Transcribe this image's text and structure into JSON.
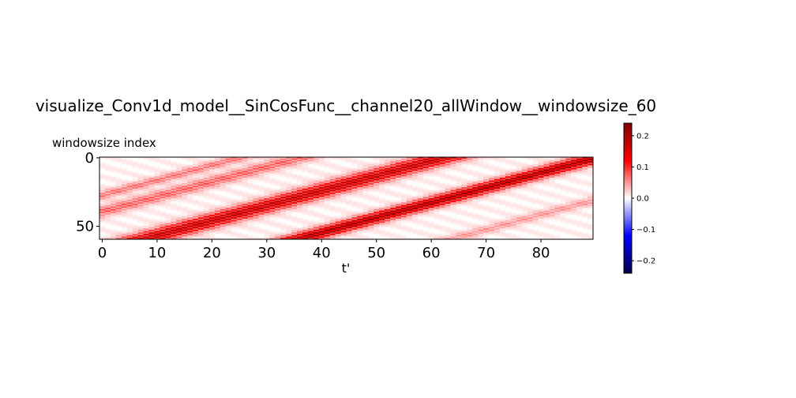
{
  "chart_data": {
    "type": "heatmap",
    "title": "visualize_Conv1d_model__SinCosFunc__channel20_allWindow__windowsize_60",
    "xlabel": "t'",
    "ylabel": "windowsize index",
    "x_range": [
      0,
      90
    ],
    "y_range": [
      0,
      60
    ],
    "x_ticks": [
      0,
      10,
      20,
      30,
      40,
      50,
      60,
      70,
      80
    ],
    "y_ticks": [
      0,
      50
    ],
    "colormap": "seismic",
    "color_range": [
      -0.24,
      0.24
    ],
    "colorbar_ticks": [
      0.2,
      0.1,
      0.0,
      -0.1,
      -0.2
    ],
    "colorbar_tick_labels": [
      "0.2",
      "0.1",
      "0.0",
      "−0.1",
      "−0.2"
    ],
    "bands": [
      {
        "t_at_index0": 62,
        "t_at_index59": 8,
        "peak_value": 0.2,
        "width": 5
      },
      {
        "t_at_index0": 90,
        "t_at_index59": 36,
        "peak_value": 0.23,
        "width": 4
      },
      {
        "t_at_index0": 36,
        "t_at_index59": -18,
        "peak_value": 0.08,
        "width": 4
      },
      {
        "t_at_index0": 25,
        "t_at_index59": -29,
        "peak_value": 0.07,
        "width": 3
      },
      {
        "t_at_index0": 118,
        "t_at_index59": 64,
        "peak_value": 0.05,
        "width": 3
      }
    ]
  }
}
